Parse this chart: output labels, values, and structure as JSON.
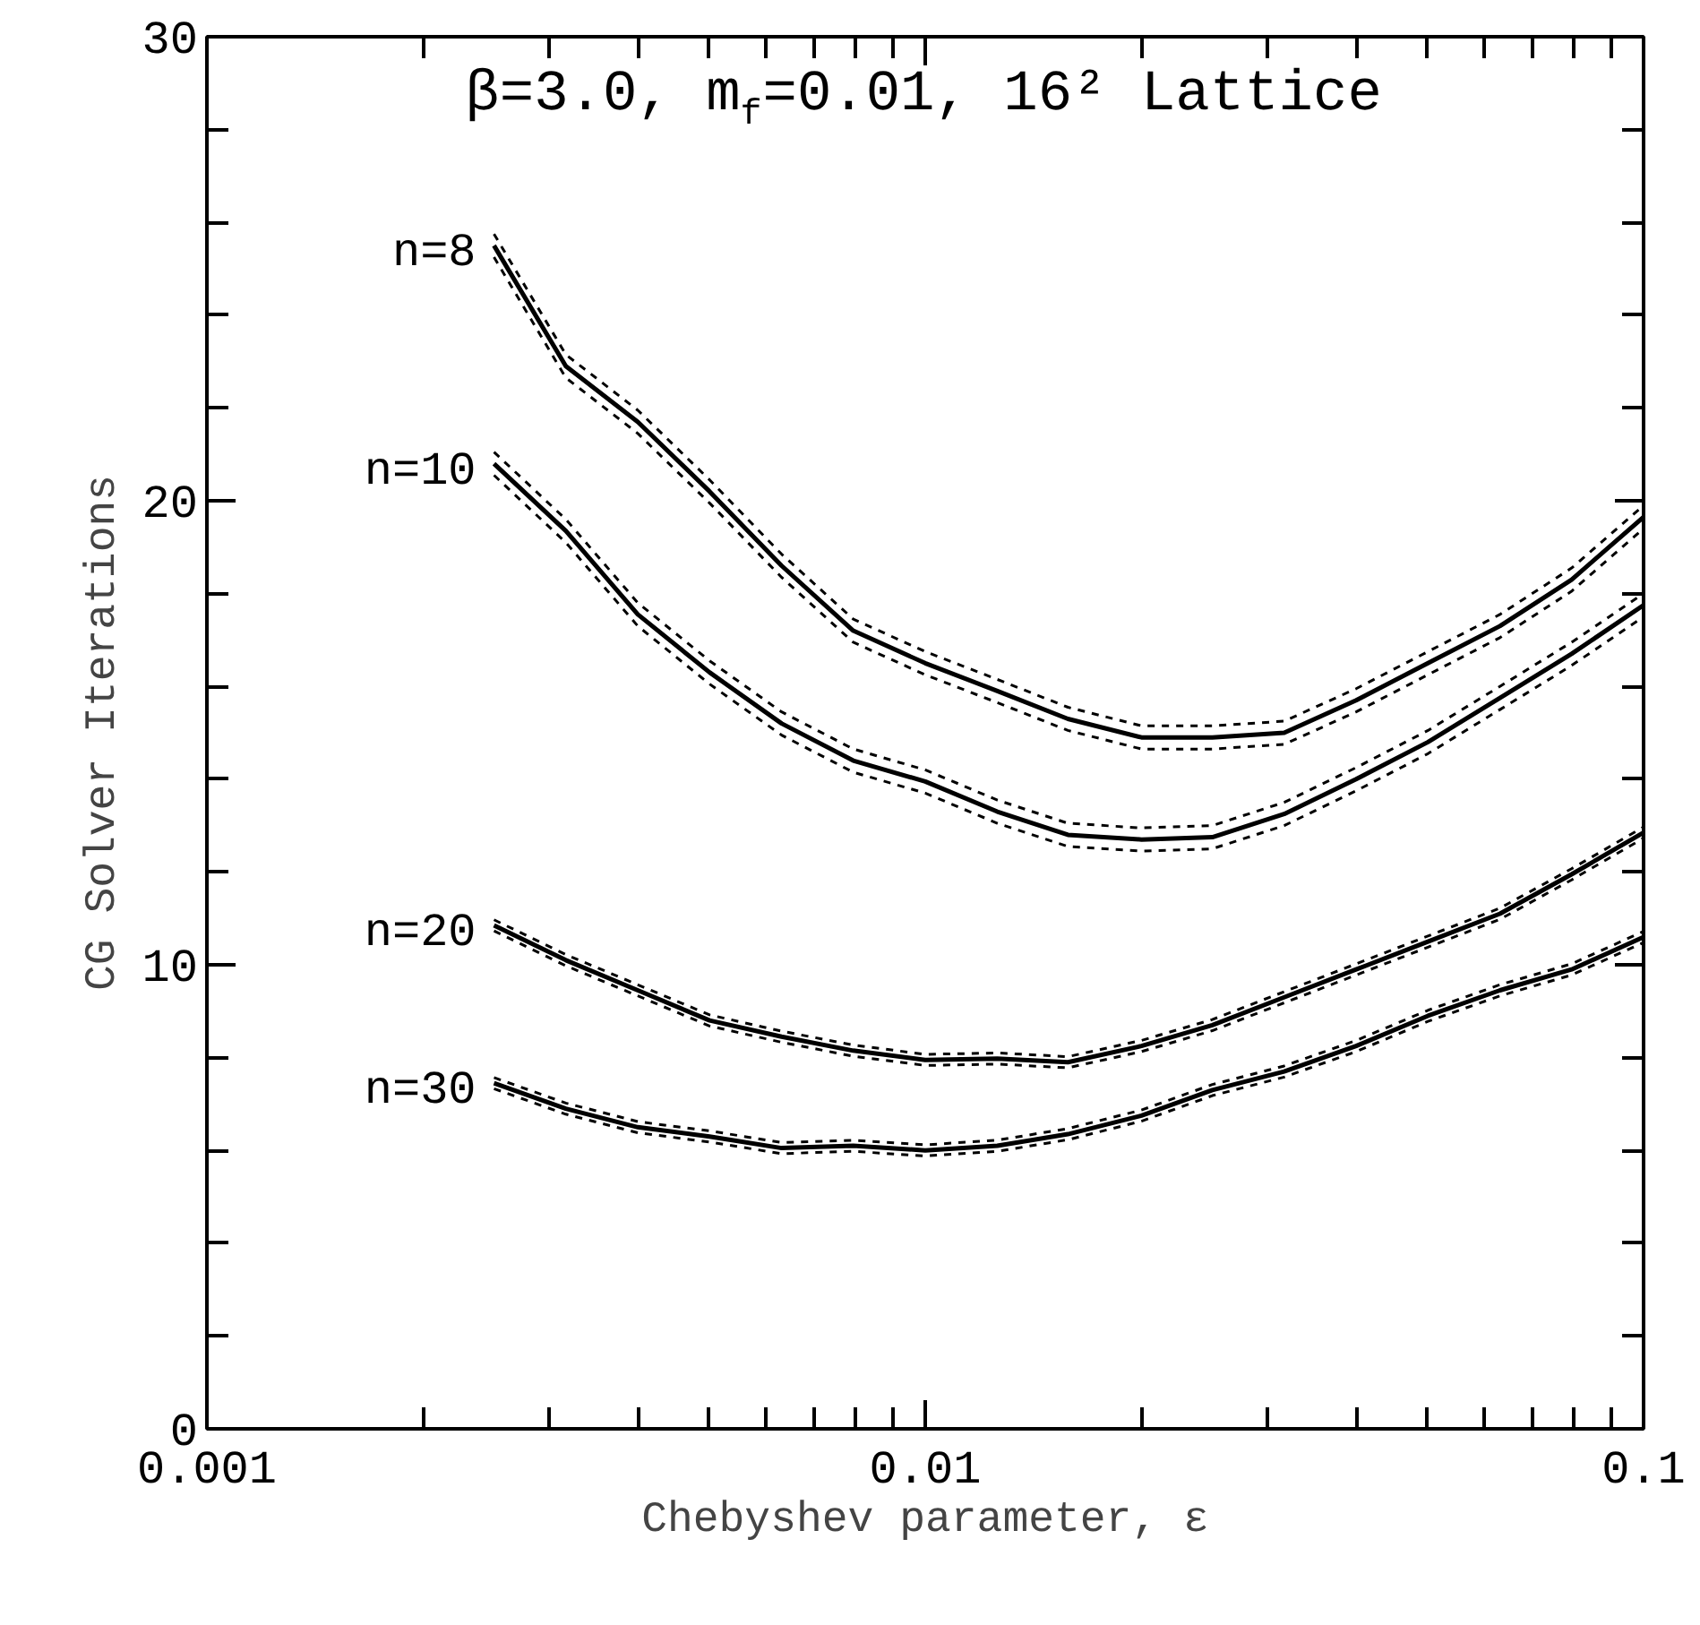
{
  "chart_data": {
    "type": "line",
    "title": "β=3.0, m$_{f}$=0.01, 16² Lattice",
    "xlabel": "Chebyshev parameter, ε",
    "ylabel": "CG Solver Iterations",
    "x": [
      0.00251,
      0.00316,
      0.00398,
      0.00501,
      0.00631,
      0.00794,
      0.01,
      0.0126,
      0.0158,
      0.02,
      0.0251,
      0.0316,
      0.0398,
      0.0501,
      0.0631,
      0.0794,
      0.1
    ],
    "series": [
      {
        "name": "n=8",
        "color": "#000000",
        "values": [
          25.5,
          22.9,
          21.7,
          20.2,
          18.6,
          17.2,
          16.5,
          15.9,
          15.3,
          14.9,
          14.9,
          15.0,
          15.7,
          16.5,
          17.3,
          18.3,
          19.65
        ]
      },
      {
        "color": "#000000",
        "line_style": "dashed",
        "values": [
          25.25,
          22.65,
          21.45,
          19.95,
          18.35,
          16.95,
          16.25,
          15.65,
          15.05,
          14.65,
          14.65,
          14.75,
          15.45,
          16.25,
          17.05,
          18.05,
          19.4
        ]
      },
      {
        "color": "#000000",
        "line_style": "dashed",
        "values": [
          25.75,
          23.15,
          21.95,
          20.45,
          18.85,
          17.45,
          16.75,
          16.15,
          15.55,
          15.15,
          15.15,
          15.25,
          15.95,
          16.75,
          17.55,
          18.55,
          19.9
        ]
      },
      {
        "name": "n=10",
        "color": "#000000",
        "values": [
          20.8,
          19.35,
          17.55,
          16.3,
          15.2,
          14.4,
          13.95,
          13.3,
          12.8,
          12.7,
          12.75,
          13.25,
          14.0,
          14.8,
          15.75,
          16.7,
          17.75
        ]
      },
      {
        "color": "#000000",
        "line_style": "dashed",
        "values": [
          20.55,
          19.1,
          17.3,
          16.05,
          14.95,
          14.15,
          13.7,
          13.05,
          12.55,
          12.45,
          12.5,
          13.0,
          13.75,
          14.55,
          15.5,
          16.45,
          17.5
        ]
      },
      {
        "color": "#000000",
        "line_style": "dashed",
        "values": [
          21.05,
          19.6,
          17.8,
          16.55,
          15.45,
          14.65,
          14.2,
          13.55,
          13.05,
          12.95,
          13.0,
          13.5,
          14.25,
          15.05,
          16.0,
          16.95,
          18.0
        ]
      },
      {
        "name": "n=20",
        "color": "#000000",
        "values": [
          10.85,
          10.1,
          9.45,
          8.8,
          8.45,
          8.15,
          7.95,
          7.98,
          7.9,
          8.25,
          8.7,
          9.3,
          9.9,
          10.5,
          11.1,
          11.95,
          12.85
        ]
      },
      {
        "color": "#000000",
        "line_style": "dashed",
        "values": [
          10.73,
          9.98,
          9.33,
          8.68,
          8.33,
          8.03,
          7.83,
          7.86,
          7.78,
          8.13,
          8.58,
          9.18,
          9.78,
          10.38,
          10.98,
          11.83,
          12.73
        ]
      },
      {
        "color": "#000000",
        "line_style": "dashed",
        "values": [
          10.97,
          10.22,
          9.57,
          8.92,
          8.57,
          8.27,
          8.07,
          8.1,
          8.02,
          8.37,
          8.82,
          9.42,
          10.02,
          10.62,
          11.22,
          12.07,
          12.97
        ]
      },
      {
        "name": "n=30",
        "color": "#000000",
        "values": [
          7.45,
          6.9,
          6.5,
          6.3,
          6.05,
          6.1,
          6.0,
          6.1,
          6.35,
          6.75,
          7.3,
          7.7,
          8.25,
          8.9,
          9.45,
          9.9,
          10.6
        ]
      },
      {
        "color": "#000000",
        "line_style": "dashed",
        "values": [
          7.33,
          6.78,
          6.38,
          6.18,
          5.93,
          5.98,
          5.88,
          5.98,
          6.23,
          6.63,
          7.18,
          7.58,
          8.13,
          8.78,
          9.33,
          9.78,
          10.48
        ]
      },
      {
        "color": "#000000",
        "line_style": "dashed",
        "values": [
          7.57,
          7.02,
          6.62,
          6.42,
          6.17,
          6.22,
          6.12,
          6.22,
          6.47,
          6.87,
          7.42,
          7.82,
          8.37,
          9.02,
          9.57,
          10.02,
          10.72
        ]
      }
    ],
    "log": "x",
    "xlim": [
      0.001,
      0.1
    ],
    "ylim": [
      0,
      30
    ],
    "xticks": [
      0.001,
      {
        "value": 0.002,
        "label": null
      },
      {
        "value": 0.003,
        "label": null
      },
      {
        "value": 0.004,
        "label": null
      },
      {
        "value": 0.005,
        "label": null
      },
      {
        "value": 0.006,
        "label": null
      },
      {
        "value": 0.007,
        "label": null
      },
      {
        "value": 0.008,
        "label": null
      },
      {
        "value": 0.009,
        "label": null
      },
      0.01,
      {
        "value": 0.02,
        "label": null
      },
      {
        "value": 0.03,
        "label": null
      },
      {
        "value": 0.04,
        "label": null
      },
      {
        "value": 0.05,
        "label": null
      },
      {
        "value": 0.06,
        "label": null
      },
      {
        "value": 0.07,
        "label": null
      },
      {
        "value": 0.08,
        "label": null
      },
      {
        "value": 0.09,
        "label": null
      },
      0.1
    ],
    "yticks": [
      0,
      {
        "value": 2,
        "label": null
      },
      {
        "value": 4,
        "label": null
      },
      {
        "value": 6,
        "label": null
      },
      {
        "value": 8,
        "label": null
      },
      10,
      {
        "value": 12,
        "label": null
      },
      {
        "value": 14,
        "label": null
      },
      {
        "value": 16,
        "label": null
      },
      {
        "value": 18,
        "label": null
      },
      20,
      {
        "value": 22,
        "label": null
      },
      {
        "value": 24,
        "label": null
      },
      {
        "value": 26,
        "label": null
      },
      {
        "value": 28,
        "label": null
      },
      30
    ],
    "grid": false,
    "marker": "none",
    "line_style": "solid"
  }
}
